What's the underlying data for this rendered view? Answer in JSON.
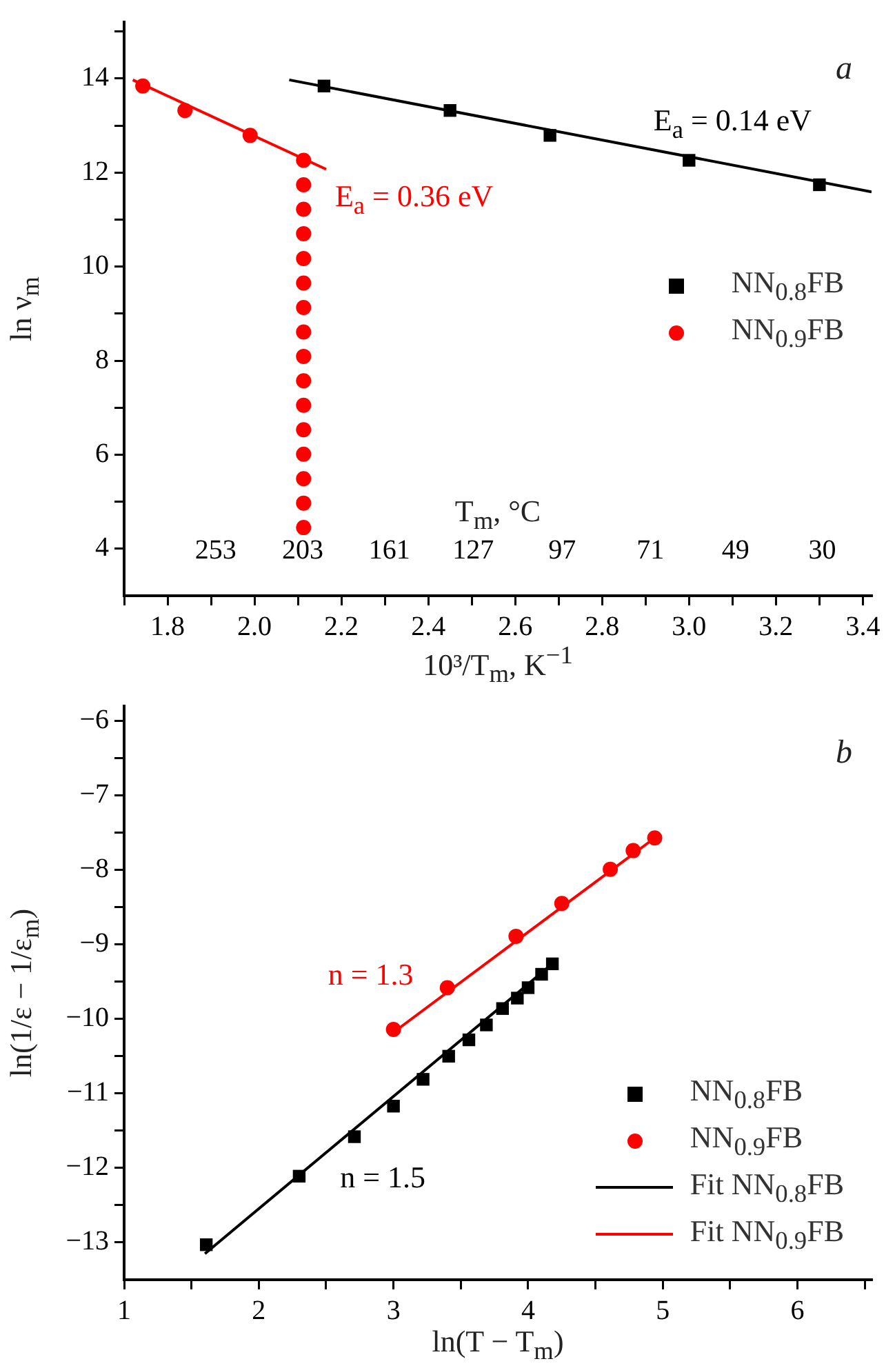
{
  "chart_data": [
    {
      "type": "scatter",
      "xlabel": "10³/T$_{m}$, K$^{−1}$",
      "ylabel": "ln ν$_{m}$",
      "x2label": "T$_{m}$, °C",
      "annotations": [
        "a",
        "E$_{a}$ = 0.14 eV",
        "E$_{a}$ = 0.36 eV",
        "253",
        "203",
        "161",
        "127",
        "97",
        "71",
        "49",
        "30"
      ],
      "xlim": [
        1.7,
        3.42
      ],
      "xticks": [
        {
          "value": 1.7,
          "label": null
        },
        1.8,
        {
          "value": 1.9,
          "label": null
        },
        {
          "value": 2.0,
          "label": "2.0"
        },
        {
          "value": 2.1,
          "label": null
        },
        2.2,
        {
          "value": 2.3,
          "label": null
        },
        2.4,
        {
          "value": 2.5,
          "label": null
        },
        2.6,
        {
          "value": 2.7,
          "label": null
        },
        2.8,
        {
          "value": 2.9,
          "label": null
        },
        {
          "value": 3.0,
          "label": "3.0"
        },
        {
          "value": 3.1,
          "label": null
        },
        3.2,
        {
          "value": 3.3,
          "label": null
        },
        3.4
      ],
      "ylim": [
        3,
        15.2
      ],
      "yticks": [
        4,
        {
          "value": 5,
          "label": null
        },
        6,
        {
          "value": 7,
          "label": null
        },
        8,
        {
          "value": 9,
          "label": null
        },
        10,
        {
          "value": 11,
          "label": null
        },
        12,
        {
          "value": 13,
          "label": null
        },
        14,
        {
          "value": 15,
          "label": null
        }
      ],
      "grid": false,
      "legend": "right",
      "series": [
        {
          "name": "NN$_{0.8}$FB",
          "type": "scatter",
          "marker": "square",
          "color": "#000000",
          "x": [
            2.16,
            2.45,
            2.68,
            3.0,
            3.3
          ],
          "values": [
            13.84,
            13.32,
            12.79,
            12.26,
            11.74
          ]
        },
        {
          "name": "NN$_{0.9}$FB",
          "type": "scatter",
          "marker": "circle",
          "color": "#ff0000",
          "x": [
            1.743,
            1.84,
            1.99,
            2.113,
            2.113,
            2.113,
            2.113,
            2.113,
            2.113,
            2.113,
            2.113,
            2.113,
            2.113,
            2.113,
            2.113,
            2.113,
            2.113,
            2.113,
            2.113
          ],
          "values": [
            13.84,
            13.32,
            12.79,
            12.26,
            11.74,
            11.22,
            10.7,
            10.17,
            9.65,
            9.13,
            8.61,
            8.09,
            7.57,
            7.05,
            6.53,
            6.01,
            5.49,
            4.97,
            4.45
          ]
        },
        {
          "type": "line",
          "marker": "none",
          "color": "#000000",
          "x": [
            2.08,
            3.42
          ],
          "values": [
            13.97,
            11.59
          ]
        },
        {
          "type": "line",
          "marker": "none",
          "color": "#ff0000",
          "x": [
            1.72,
            2.165
          ],
          "values": [
            13.97,
            12.07
          ]
        }
      ]
    },
    {
      "type": "scatter",
      "xlabel": "ln(T − T$_{m}$)",
      "ylabel": "ln(1/ε − 1/ε$_{m}$)",
      "annotations": [
        "b",
        "n = 1.3",
        "n = 1.5"
      ],
      "xlim": [
        1,
        6.55
      ],
      "xticks": [
        1,
        {
          "value": 1.5,
          "label": null
        },
        2,
        {
          "value": 2.5,
          "label": null
        },
        3,
        {
          "value": 3.5,
          "label": null
        },
        4,
        {
          "value": 4.5,
          "label": null
        },
        5,
        {
          "value": 5.5,
          "label": null
        },
        6,
        {
          "value": 6.5,
          "label": null
        }
      ],
      "ylim": [
        -13.5,
        -5.8
      ],
      "yticks": [
        -13,
        {
          "value": -12.5,
          "label": null
        },
        -12,
        {
          "value": -11.5,
          "label": null
        },
        -11,
        {
          "value": -10.5,
          "label": null
        },
        -10,
        {
          "value": -9.5,
          "label": null
        },
        -9,
        {
          "value": -8.5,
          "label": null
        },
        -8,
        {
          "value": -7.5,
          "label": null
        },
        -7,
        {
          "value": -6.5,
          "label": null
        },
        -6
      ],
      "grid": false,
      "legend": "bottom right",
      "series": [
        {
          "name": "NN$_{0.8}$FB",
          "type": "scatter",
          "marker": "square",
          "color": "#000000",
          "x": [
            1.61,
            2.3,
            2.71,
            3.0,
            3.22,
            3.41,
            3.56,
            3.69,
            3.81,
            3.92,
            4.0,
            4.1,
            4.18
          ],
          "values": [
            -13.03,
            -12.11,
            -11.58,
            -11.17,
            -10.81,
            -10.5,
            -10.28,
            -10.08,
            -9.86,
            -9.72,
            -9.58,
            -9.4,
            -9.26
          ]
        },
        {
          "name": "NN$_{0.9}$FB",
          "type": "scatter",
          "marker": "circle",
          "color": "#ff0000",
          "x": [
            3.0,
            3.4,
            3.91,
            4.25,
            4.61,
            4.78,
            4.94
          ],
          "values": [
            -10.14,
            -9.58,
            -8.89,
            -8.45,
            -7.99,
            -7.74,
            -7.57
          ]
        },
        {
          "name": "Fit NN$_{0.8}$FB",
          "type": "line",
          "marker": "none",
          "color": "#000000",
          "x": [
            1.6,
            4.18
          ],
          "values": [
            -13.15,
            -9.26
          ]
        },
        {
          "name": "Fit NN$_{0.9}$FB",
          "type": "line",
          "marker": "none",
          "color": "#ff0000",
          "x": [
            3.0,
            4.94
          ],
          "values": [
            -10.18,
            -7.57
          ]
        }
      ]
    }
  ]
}
